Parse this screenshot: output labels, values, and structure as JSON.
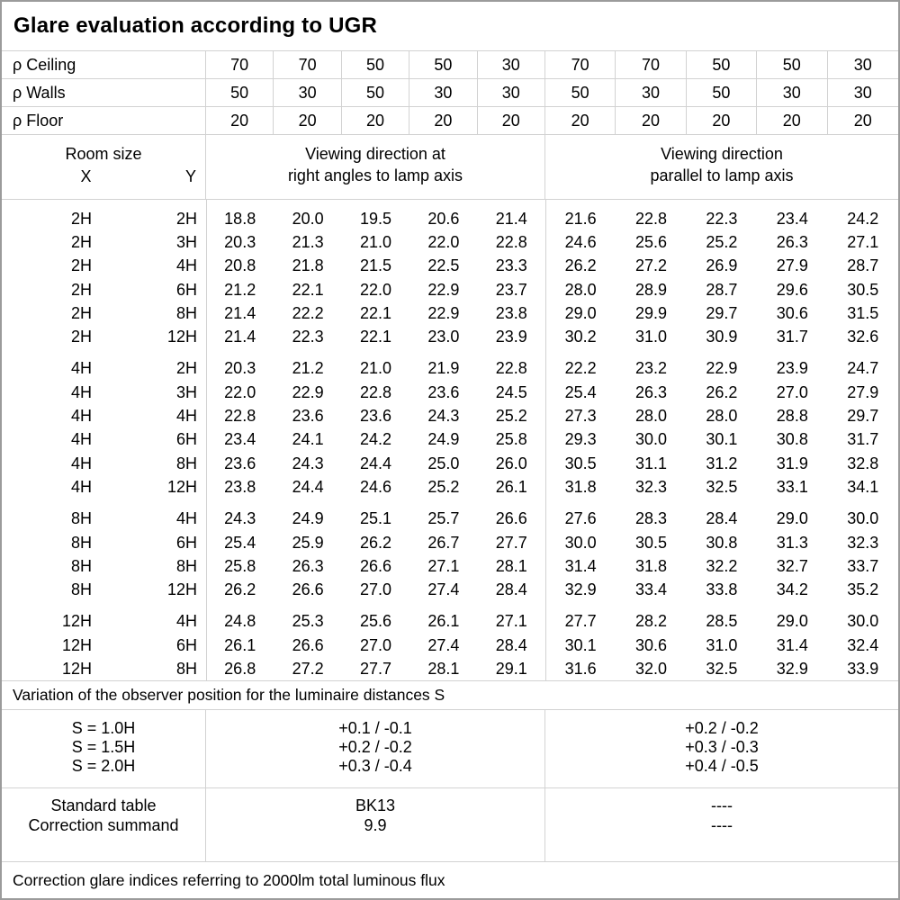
{
  "title": "Glare evaluation according to UGR",
  "colors": {
    "background": "#ffffff",
    "text": "#000000",
    "grid_line": "#d2d2d2",
    "outer_border": "#9b9b9b"
  },
  "header": {
    "reflectance_rows": [
      {
        "label": "ρ Ceiling",
        "values": [
          "70",
          "70",
          "50",
          "50",
          "30",
          "70",
          "70",
          "50",
          "50",
          "30"
        ]
      },
      {
        "label": "ρ Walls",
        "values": [
          "50",
          "30",
          "50",
          "30",
          "30",
          "50",
          "30",
          "50",
          "30",
          "30"
        ]
      },
      {
        "label": "ρ Floor",
        "values": [
          "20",
          "20",
          "20",
          "20",
          "20",
          "20",
          "20",
          "20",
          "20",
          "20"
        ]
      }
    ],
    "room_size_label": "Room size",
    "x_label": "X",
    "y_label": "Y",
    "viewing_left": {
      "line1": "Viewing direction at",
      "line2": "right angles to lamp axis"
    },
    "viewing_right": {
      "line1": "Viewing direction",
      "line2": "parallel to lamp axis"
    }
  },
  "table": {
    "blocks": [
      {
        "rows": [
          {
            "x": "2H",
            "y": "2H",
            "left": [
              "18.8",
              "20.0",
              "19.5",
              "20.6",
              "21.4"
            ],
            "right": [
              "21.6",
              "22.8",
              "22.3",
              "23.4",
              "24.2"
            ]
          },
          {
            "x": "2H",
            "y": "3H",
            "left": [
              "20.3",
              "21.3",
              "21.0",
              "22.0",
              "22.8"
            ],
            "right": [
              "24.6",
              "25.6",
              "25.2",
              "26.3",
              "27.1"
            ]
          },
          {
            "x": "2H",
            "y": "4H",
            "left": [
              "20.8",
              "21.8",
              "21.5",
              "22.5",
              "23.3"
            ],
            "right": [
              "26.2",
              "27.2",
              "26.9",
              "27.9",
              "28.7"
            ]
          },
          {
            "x": "2H",
            "y": "6H",
            "left": [
              "21.2",
              "22.1",
              "22.0",
              "22.9",
              "23.7"
            ],
            "right": [
              "28.0",
              "28.9",
              "28.7",
              "29.6",
              "30.5"
            ]
          },
          {
            "x": "2H",
            "y": "8H",
            "left": [
              "21.4",
              "22.2",
              "22.1",
              "22.9",
              "23.8"
            ],
            "right": [
              "29.0",
              "29.9",
              "29.7",
              "30.6",
              "31.5"
            ]
          },
          {
            "x": "2H",
            "y": "12H",
            "left": [
              "21.4",
              "22.3",
              "22.1",
              "23.0",
              "23.9"
            ],
            "right": [
              "30.2",
              "31.0",
              "30.9",
              "31.7",
              "32.6"
            ]
          }
        ]
      },
      {
        "rows": [
          {
            "x": "4H",
            "y": "2H",
            "left": [
              "20.3",
              "21.2",
              "21.0",
              "21.9",
              "22.8"
            ],
            "right": [
              "22.2",
              "23.2",
              "22.9",
              "23.9",
              "24.7"
            ]
          },
          {
            "x": "4H",
            "y": "3H",
            "left": [
              "22.0",
              "22.9",
              "22.8",
              "23.6",
              "24.5"
            ],
            "right": [
              "25.4",
              "26.3",
              "26.2",
              "27.0",
              "27.9"
            ]
          },
          {
            "x": "4H",
            "y": "4H",
            "left": [
              "22.8",
              "23.6",
              "23.6",
              "24.3",
              "25.2"
            ],
            "right": [
              "27.3",
              "28.0",
              "28.0",
              "28.8",
              "29.7"
            ]
          },
          {
            "x": "4H",
            "y": "6H",
            "left": [
              "23.4",
              "24.1",
              "24.2",
              "24.9",
              "25.8"
            ],
            "right": [
              "29.3",
              "30.0",
              "30.1",
              "30.8",
              "31.7"
            ]
          },
          {
            "x": "4H",
            "y": "8H",
            "left": [
              "23.6",
              "24.3",
              "24.4",
              "25.0",
              "26.0"
            ],
            "right": [
              "30.5",
              "31.1",
              "31.2",
              "31.9",
              "32.8"
            ]
          },
          {
            "x": "4H",
            "y": "12H",
            "left": [
              "23.8",
              "24.4",
              "24.6",
              "25.2",
              "26.1"
            ],
            "right": [
              "31.8",
              "32.3",
              "32.5",
              "33.1",
              "34.1"
            ]
          }
        ]
      },
      {
        "rows": [
          {
            "x": "8H",
            "y": "4H",
            "left": [
              "24.3",
              "24.9",
              "25.1",
              "25.7",
              "26.6"
            ],
            "right": [
              "27.6",
              "28.3",
              "28.4",
              "29.0",
              "30.0"
            ]
          },
          {
            "x": "8H",
            "y": "6H",
            "left": [
              "25.4",
              "25.9",
              "26.2",
              "26.7",
              "27.7"
            ],
            "right": [
              "30.0",
              "30.5",
              "30.8",
              "31.3",
              "32.3"
            ]
          },
          {
            "x": "8H",
            "y": "8H",
            "left": [
              "25.8",
              "26.3",
              "26.6",
              "27.1",
              "28.1"
            ],
            "right": [
              "31.4",
              "31.8",
              "32.2",
              "32.7",
              "33.7"
            ]
          },
          {
            "x": "8H",
            "y": "12H",
            "left": [
              "26.2",
              "26.6",
              "27.0",
              "27.4",
              "28.4"
            ],
            "right": [
              "32.9",
              "33.4",
              "33.8",
              "34.2",
              "35.2"
            ]
          }
        ]
      },
      {
        "rows": [
          {
            "x": "12H",
            "y": "4H",
            "left": [
              "24.8",
              "25.3",
              "25.6",
              "26.1",
              "27.1"
            ],
            "right": [
              "27.7",
              "28.2",
              "28.5",
              "29.0",
              "30.0"
            ]
          },
          {
            "x": "12H",
            "y": "6H",
            "left": [
              "26.1",
              "26.6",
              "27.0",
              "27.4",
              "28.4"
            ],
            "right": [
              "30.1",
              "30.6",
              "31.0",
              "31.4",
              "32.4"
            ]
          },
          {
            "x": "12H",
            "y": "8H",
            "left": [
              "26.8",
              "27.2",
              "27.7",
              "28.1",
              "29.1"
            ],
            "right": [
              "31.6",
              "32.0",
              "32.5",
              "32.9",
              "33.9"
            ]
          }
        ]
      }
    ]
  },
  "variation": {
    "note": "Variation of the observer position for the luminaire distances S",
    "rows": [
      {
        "label": "S = 1.0H",
        "left": "+0.1 / -0.1",
        "right": "+0.2 / -0.2"
      },
      {
        "label": "S = 1.5H",
        "left": "+0.2 / -0.2",
        "right": "+0.3 / -0.3"
      },
      {
        "label": "S = 2.0H",
        "left": "+0.3 / -0.4",
        "right": "+0.4 / -0.5"
      }
    ]
  },
  "summary": {
    "rows": [
      {
        "label": "Standard table",
        "left": "BK13",
        "right": "----"
      },
      {
        "label": "Correction summand",
        "left": "9.9",
        "right": "----"
      }
    ]
  },
  "footer_note": "Correction glare indices referring to 2000lm total luminous flux"
}
